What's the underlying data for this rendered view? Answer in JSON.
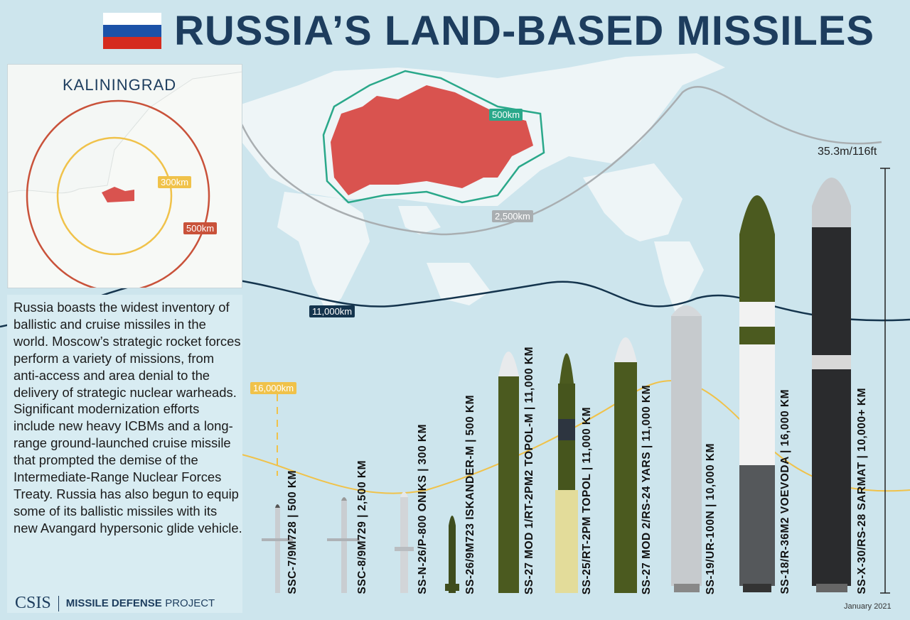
{
  "title": "RUSSIA’S LAND-BASED MISSILES",
  "flag_colors": [
    "#ffffff",
    "#1c52a8",
    "#d52b1e"
  ],
  "inset": {
    "title": "KALININGRAD",
    "ranges": [
      {
        "label": "300km",
        "color": "#f0c24a"
      },
      {
        "label": "500km",
        "color": "#c9523a"
      }
    ]
  },
  "map": {
    "ranges": [
      {
        "label": "500km",
        "color": "#2aa88a"
      },
      {
        "label": "2,500km",
        "color": "#a9aeb1"
      },
      {
        "label": "11,000km",
        "color": "#14344d"
      },
      {
        "label": "16,000km",
        "color": "#f0c24a"
      }
    ],
    "russia_color": "#d9534f"
  },
  "description": "Russia boasts the widest inventory of ballistic and cruise missiles in the world. Moscow’s strategic rocket forces perform a variety of missions, from anti-access and area denial to the delivery of strategic nuclear warheads. Significant modernization efforts include new heavy ICBMs and a long-range ground-launched cruise missile that prompted the demise of the Intermediate-Range Nuclear Forces Treaty. Russia has also begun to equip some of its ballistic missiles with its new Avangard hypersonic glide vehicle.",
  "logo": {
    "org": "CSIS",
    "project_bold": "MISSILE DEFENSE",
    "project": "PROJECT"
  },
  "height_label": "35.3m/116ft",
  "date": "January 2021",
  "missiles": [
    {
      "label": "SSC-7/9M728 | 500 KM"
    },
    {
      "label": "SSC-8/9M729 | 2,500 KM"
    },
    {
      "label": "SS-N-26/P-800 ONIKS | 300 KM"
    },
    {
      "label": "SS-26/9M723 ISKANDER-M | 500 KM"
    },
    {
      "label": "SS-27 MOD 1/RT-2PM2 TOPOL-M | 11,000 KM"
    },
    {
      "label": "SS-25/RT-2PM TOPOL | 11,000 KM"
    },
    {
      "label": "SS-27 MOD 2/RS-24 YARS | 11,000 KM"
    },
    {
      "label": "SS-19/UR-100N | 10,000 KM"
    },
    {
      "label": "SS-18/R-36M2 VOEVODA | 16,000 KM"
    },
    {
      "label": "SS-X-30/RS-28 SARMAT | 10,000+ KM"
    }
  ]
}
